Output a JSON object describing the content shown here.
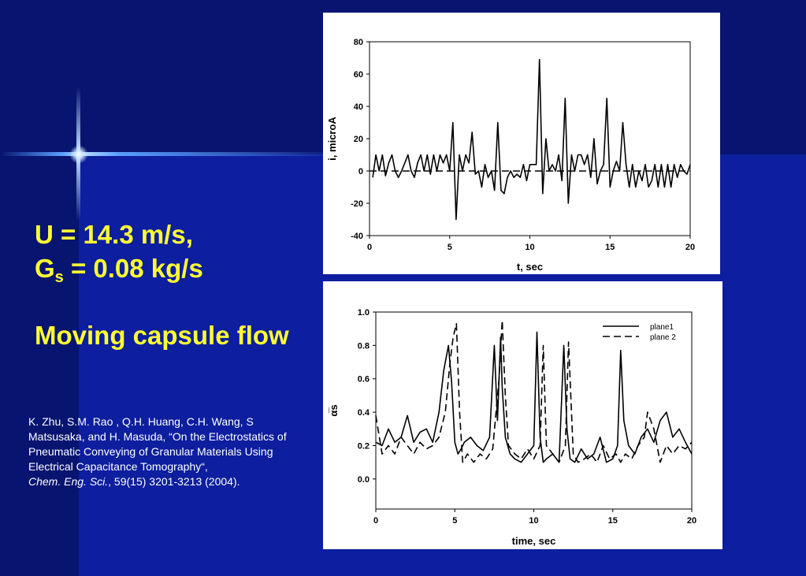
{
  "slide": {
    "title_line1": "U = 14.3 m/s,",
    "title_g": "G",
    "title_g_sub": "s",
    "title_g_rest": " = 0.08 kg/s",
    "subtitle": "Moving capsule flow",
    "citation_main": "K. Zhu, S.M. Rao , Q.H. Huang, C.H. Wang, S Matsusaka, and H. Masuda, “On the Electrostatics of Pneumatic Conveying of Granular Materials Using Electrical Capacitance Tomography“,",
    "citation_journal": "Chem. Eng. Sci.",
    "citation_rest": ", 59(15) 3201-3213 (2004).",
    "colors": {
      "title": "#ffff33",
      "background": "#0a1a8c",
      "text": "#ffffff"
    }
  },
  "chart_data": [
    {
      "type": "line",
      "xlabel": "t, sec",
      "ylabel": "i, microA",
      "xlim": [
        0,
        20
      ],
      "ylim": [
        -40,
        80
      ],
      "xticks": [
        "0",
        "5",
        "10",
        "15",
        "20"
      ],
      "yticks": [
        "80",
        "60",
        "40",
        "20",
        "0",
        "-20",
        "-40"
      ],
      "grid": false,
      "series": [
        {
          "style": "solid",
          "x": [
            0.2,
            0.4,
            0.6,
            0.8,
            1.0,
            1.2,
            1.4,
            1.6,
            1.8,
            2.0,
            2.2,
            2.4,
            2.6,
            2.8,
            3.0,
            3.2,
            3.4,
            3.6,
            3.8,
            4.0,
            4.2,
            4.4,
            4.6,
            4.8,
            5.0,
            5.2,
            5.4,
            5.6,
            5.8,
            6.0,
            6.2,
            6.4,
            6.6,
            6.8,
            7.0,
            7.2,
            7.4,
            7.6,
            7.8,
            8.0,
            8.2,
            8.4,
            8.6,
            8.8,
            9.0,
            9.2,
            9.4,
            9.6,
            9.8,
            10.0,
            10.2,
            10.4,
            10.6,
            10.8,
            11.0,
            11.2,
            11.4,
            11.6,
            11.8,
            12.0,
            12.2,
            12.4,
            12.6,
            12.8,
            13.0,
            13.2,
            13.4,
            13.6,
            13.8,
            14.0,
            14.2,
            14.4,
            14.6,
            14.8,
            15.0,
            15.2,
            15.4,
            15.6,
            15.8,
            16.0,
            16.2,
            16.4,
            16.6,
            16.8,
            17.0,
            17.2,
            17.4,
            17.6,
            17.8,
            18.0,
            18.2,
            18.4,
            18.6,
            18.8,
            19.0,
            19.2,
            19.4,
            19.6,
            19.8,
            20.0
          ],
          "y": [
            -4,
            10,
            0,
            10,
            -3,
            5,
            10,
            0,
            -4,
            0,
            5,
            10,
            0,
            -4,
            5,
            10,
            0,
            10,
            -2,
            10,
            0,
            10,
            5,
            10,
            0,
            30,
            -30,
            10,
            0,
            10,
            5,
            24,
            -2,
            0,
            -10,
            4,
            -4,
            0,
            -12,
            30,
            -12,
            -14,
            -4,
            0,
            -4,
            -2,
            -4,
            4,
            -6,
            4,
            4,
            4,
            69,
            -14,
            20,
            0,
            4,
            0,
            10,
            -6,
            45,
            -20,
            10,
            0,
            10,
            10,
            4,
            10,
            -4,
            20,
            -8,
            0,
            4,
            45,
            -10,
            0,
            6,
            0,
            30,
            4,
            -10,
            4,
            -10,
            0,
            -6,
            4,
            -10,
            -6,
            4,
            -10,
            4,
            -10,
            4,
            -10,
            4,
            -4,
            4,
            0,
            -2,
            4
          ]
        },
        {
          "style": "dashed",
          "x": [
            0,
            20
          ],
          "y": [
            0,
            0
          ]
        }
      ]
    },
    {
      "type": "line",
      "xlabel": "time, sec",
      "ylabel": "α̅s",
      "xlim": [
        0,
        20
      ],
      "ylim": [
        -0.18,
        1.0
      ],
      "xticks": [
        "0",
        "5",
        "10",
        "15",
        "20"
      ],
      "yticks": [
        "1.0",
        "0.8",
        "0.6",
        "0.4",
        "0.2",
        "0.0"
      ],
      "grid": false,
      "legend_position": "top-right",
      "series": [
        {
          "name": "plane1",
          "style": "solid",
          "x": [
            0.0,
            0.4,
            0.8,
            1.2,
            1.6,
            2.0,
            2.4,
            2.8,
            3.2,
            3.6,
            4.0,
            4.3,
            4.6,
            4.8,
            5.0,
            5.2,
            5.4,
            5.6,
            6.0,
            6.4,
            6.8,
            7.2,
            7.5,
            7.7,
            7.9,
            8.0,
            8.2,
            8.5,
            8.8,
            9.2,
            9.6,
            10.0,
            10.2,
            10.4,
            10.6,
            10.8,
            11.2,
            11.6,
            11.9,
            12.1,
            12.3,
            12.6,
            13.0,
            13.4,
            13.8,
            14.2,
            14.6,
            15.0,
            15.3,
            15.5,
            15.7,
            16.0,
            16.4,
            16.8,
            17.2,
            17.6,
            18.0,
            18.4,
            18.8,
            19.2,
            19.6,
            20.0
          ],
          "y": [
            0.22,
            0.2,
            0.3,
            0.22,
            0.25,
            0.38,
            0.22,
            0.28,
            0.3,
            0.22,
            0.4,
            0.65,
            0.8,
            0.58,
            0.22,
            0.15,
            0.18,
            0.22,
            0.25,
            0.2,
            0.17,
            0.25,
            0.8,
            0.35,
            0.85,
            0.55,
            0.25,
            0.15,
            0.12,
            0.1,
            0.15,
            0.2,
            0.88,
            0.25,
            0.1,
            0.12,
            0.15,
            0.1,
            0.8,
            0.3,
            0.12,
            0.1,
            0.18,
            0.12,
            0.15,
            0.25,
            0.1,
            0.12,
            0.2,
            0.77,
            0.35,
            0.2,
            0.15,
            0.25,
            0.3,
            0.22,
            0.35,
            0.4,
            0.25,
            0.3,
            0.22,
            0.15
          ]
        },
        {
          "name": "plane 2",
          "style": "dashed",
          "x": [
            0.0,
            0.4,
            0.8,
            1.2,
            1.6,
            2.0,
            2.4,
            2.8,
            3.2,
            3.6,
            4.0,
            4.4,
            4.7,
            4.9,
            5.1,
            5.3,
            5.5,
            5.8,
            6.2,
            6.6,
            7.0,
            7.4,
            7.8,
            8.0,
            8.2,
            8.4,
            8.8,
            9.2,
            9.6,
            10.0,
            10.4,
            10.6,
            10.8,
            11.2,
            11.6,
            12.0,
            12.2,
            12.5,
            12.8,
            13.2,
            13.6,
            14.0,
            14.4,
            14.8,
            15.2,
            15.5,
            15.8,
            16.2,
            16.6,
            17.0,
            17.2,
            17.6,
            18.0,
            18.4,
            18.8,
            19.2,
            19.6,
            20.0
          ],
          "y": [
            0.38,
            0.15,
            0.2,
            0.15,
            0.25,
            0.2,
            0.15,
            0.22,
            0.18,
            0.2,
            0.25,
            0.4,
            0.7,
            0.85,
            0.93,
            0.4,
            0.1,
            0.15,
            0.1,
            0.15,
            0.12,
            0.18,
            0.6,
            0.95,
            0.5,
            0.2,
            0.15,
            0.12,
            0.18,
            0.12,
            0.2,
            0.8,
            0.2,
            0.15,
            0.1,
            0.2,
            0.82,
            0.15,
            0.1,
            0.12,
            0.15,
            0.1,
            0.2,
            0.12,
            0.15,
            0.1,
            0.15,
            0.12,
            0.2,
            0.25,
            0.4,
            0.3,
            0.1,
            0.2,
            0.15,
            0.2,
            0.18,
            0.22
          ]
        }
      ]
    }
  ]
}
